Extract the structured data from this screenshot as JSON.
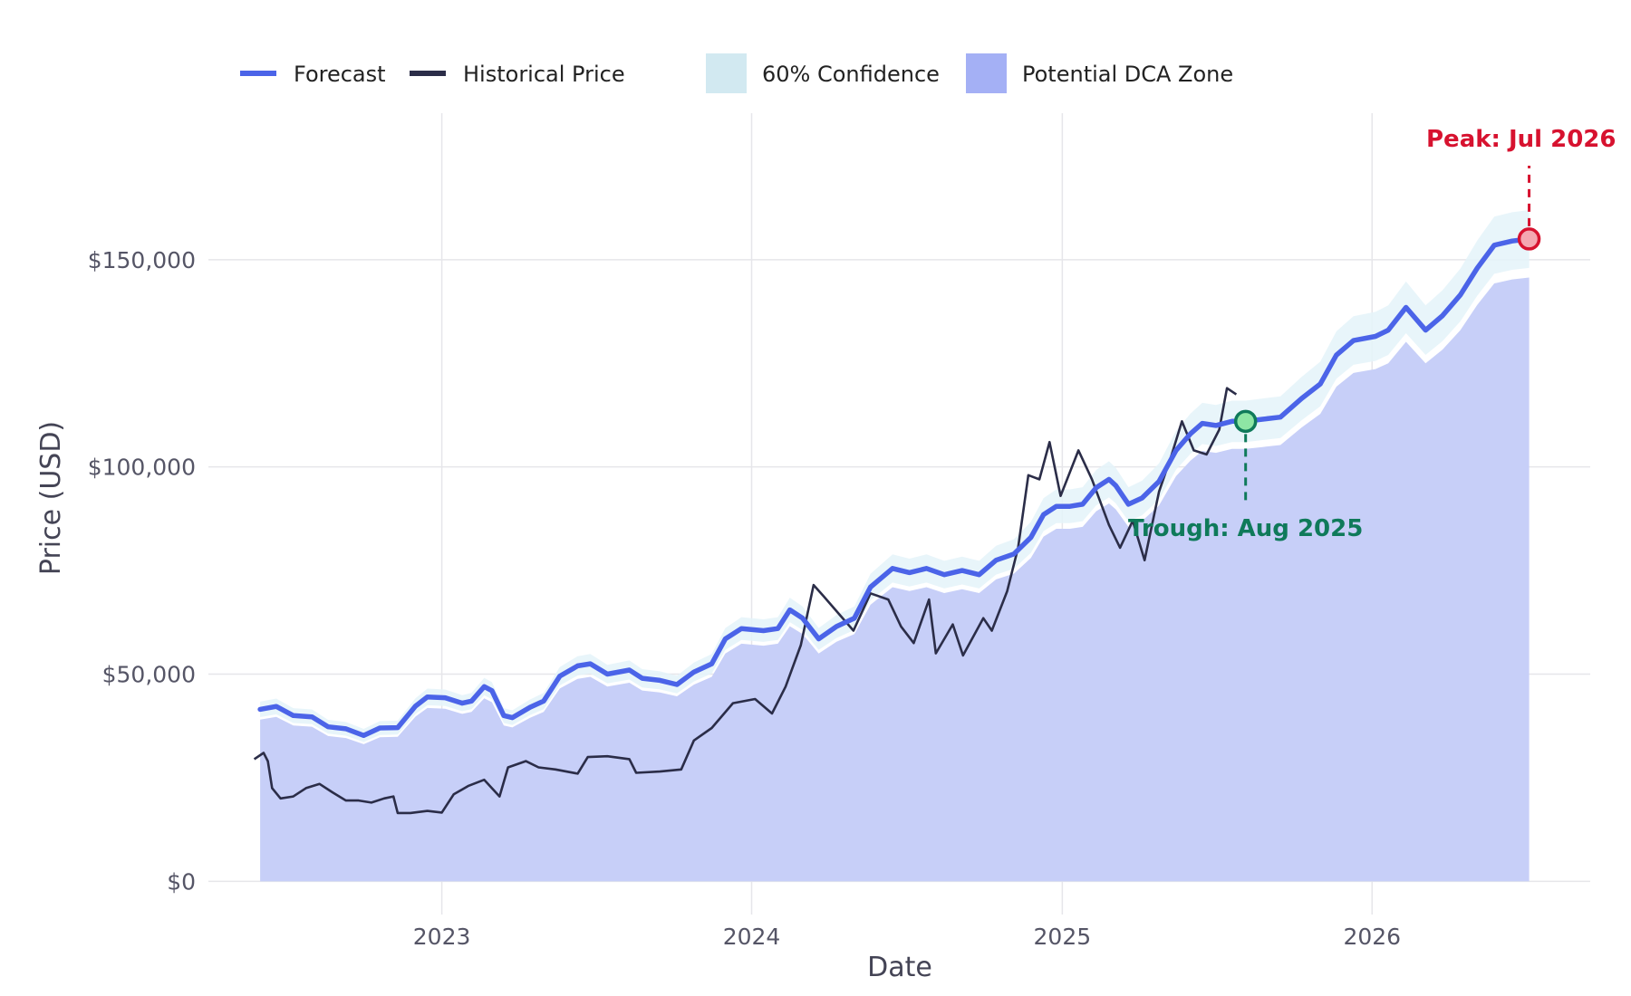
{
  "chart_data": {
    "type": "line",
    "title": "",
    "xlabel": "Date",
    "ylabel": "Price (USD)",
    "xlim": [
      "2022-04-01",
      "2026-09-15"
    ],
    "ylim": [
      -8000,
      193000
    ],
    "x_ticks": [
      {
        "date": "2023-01-01",
        "label": "2023"
      },
      {
        "date": "2024-01-01",
        "label": "2024"
      },
      {
        "date": "2025-01-01",
        "label": "2025"
      },
      {
        "date": "2026-01-01",
        "label": "2026"
      }
    ],
    "y_ticks": [
      {
        "value": 0,
        "label": "$0"
      },
      {
        "value": 50000,
        "label": "$50,000"
      },
      {
        "value": 100000,
        "label": "$100,000"
      },
      {
        "value": 150000,
        "label": "$150,000"
      }
    ],
    "grid": true,
    "legend": {
      "placement": "top",
      "items": [
        {
          "label": "Forecast",
          "kind": "line",
          "color": "#4b64e8"
        },
        {
          "label": "Historical Price",
          "kind": "line",
          "color": "#2b2d48"
        },
        {
          "label": "60% Confidence",
          "kind": "band",
          "color": "#d2e9f1"
        },
        {
          "label": "Potential DCA Zone",
          "kind": "area",
          "color": "#a4b0f5"
        }
      ]
    },
    "colors": {
      "forecast": "#4b64e8",
      "historical": "#2b2d48",
      "confidence": "#e4f3f9",
      "dca_zone": "#c7cff8",
      "peak": "#d7122f",
      "trough": "#0f7a5a",
      "grid": "#e6e6ea"
    },
    "confidence_band_pct": 0.045,
    "dca_zone_below_forecast_pct": 0.06,
    "series": [
      {
        "name": "Forecast",
        "points": [
          [
            "2022-06-01",
            41500
          ],
          [
            "2022-06-20",
            42200
          ],
          [
            "2022-07-10",
            40000
          ],
          [
            "2022-08-01",
            39700
          ],
          [
            "2022-08-20",
            37300
          ],
          [
            "2022-09-10",
            36800
          ],
          [
            "2022-10-01",
            35200
          ],
          [
            "2022-10-20",
            37000
          ],
          [
            "2022-11-10",
            37100
          ],
          [
            "2022-12-01",
            42300
          ],
          [
            "2022-12-15",
            44500
          ],
          [
            "2023-01-05",
            44300
          ],
          [
            "2023-01-25",
            43000
          ],
          [
            "2023-02-05",
            43500
          ],
          [
            "2023-02-20",
            47000
          ],
          [
            "2023-03-01",
            46000
          ],
          [
            "2023-03-15",
            40000
          ],
          [
            "2023-03-25",
            39500
          ],
          [
            "2023-04-15",
            42000
          ],
          [
            "2023-05-01",
            43500
          ],
          [
            "2023-05-20",
            49500
          ],
          [
            "2023-06-10",
            52000
          ],
          [
            "2023-06-25",
            52500
          ],
          [
            "2023-07-15",
            50000
          ],
          [
            "2023-08-10",
            51000
          ],
          [
            "2023-08-25",
            49000
          ],
          [
            "2023-09-15",
            48500
          ],
          [
            "2023-10-05",
            47500
          ],
          [
            "2023-10-25",
            50500
          ],
          [
            "2023-11-15",
            52500
          ],
          [
            "2023-12-01",
            58500
          ],
          [
            "2023-12-20",
            61000
          ],
          [
            "2024-01-15",
            60500
          ],
          [
            "2024-02-01",
            61000
          ],
          [
            "2024-02-15",
            65500
          ],
          [
            "2024-03-01",
            63500
          ],
          [
            "2024-03-20",
            58500
          ],
          [
            "2024-04-10",
            61500
          ],
          [
            "2024-05-01",
            63500
          ],
          [
            "2024-05-20",
            71000
          ],
          [
            "2024-06-15",
            75500
          ],
          [
            "2024-07-05",
            74500
          ],
          [
            "2024-07-25",
            75500
          ],
          [
            "2024-08-15",
            74000
          ],
          [
            "2024-09-05",
            75000
          ],
          [
            "2024-09-25",
            74000
          ],
          [
            "2024-10-15",
            77500
          ],
          [
            "2024-11-05",
            79000
          ],
          [
            "2024-11-25",
            83000
          ],
          [
            "2024-12-10",
            88500
          ],
          [
            "2024-12-25",
            90500
          ],
          [
            "2025-01-10",
            90500
          ],
          [
            "2025-01-25",
            91000
          ],
          [
            "2025-02-10",
            95000
          ],
          [
            "2025-02-25",
            97000
          ],
          [
            "2025-03-05",
            95500
          ],
          [
            "2025-03-20",
            91000
          ],
          [
            "2025-04-05",
            92500
          ],
          [
            "2025-04-25",
            96500
          ],
          [
            "2025-05-15",
            104000
          ],
          [
            "2025-06-01",
            108000
          ],
          [
            "2025-06-15",
            110500
          ],
          [
            "2025-07-01",
            110000
          ],
          [
            "2025-07-20",
            111000
          ],
          [
            "2025-08-05",
            111000
          ],
          [
            "2025-08-25",
            111500
          ],
          [
            "2025-09-15",
            112000
          ],
          [
            "2025-10-10",
            116500
          ],
          [
            "2025-11-01",
            120000
          ],
          [
            "2025-11-20",
            127000
          ],
          [
            "2025-12-10",
            130500
          ],
          [
            "2026-01-05",
            131500
          ],
          [
            "2026-01-20",
            133000
          ],
          [
            "2026-02-10",
            138500
          ],
          [
            "2026-03-05",
            133000
          ],
          [
            "2026-03-25",
            136500
          ],
          [
            "2026-04-15",
            141500
          ],
          [
            "2026-05-05",
            148000
          ],
          [
            "2026-05-25",
            153500
          ],
          [
            "2026-06-15",
            154500
          ],
          [
            "2026-07-05",
            155000
          ]
        ]
      },
      {
        "name": "Historical Price",
        "points": [
          [
            "2022-05-25",
            29500
          ],
          [
            "2022-06-05",
            31000
          ],
          [
            "2022-06-10",
            29000
          ],
          [
            "2022-06-15",
            22500
          ],
          [
            "2022-06-25",
            20000
          ],
          [
            "2022-07-10",
            20500
          ],
          [
            "2022-07-25",
            22500
          ],
          [
            "2022-08-10",
            23500
          ],
          [
            "2022-08-25",
            21500
          ],
          [
            "2022-09-10",
            19500
          ],
          [
            "2022-09-25",
            19500
          ],
          [
            "2022-10-10",
            19000
          ],
          [
            "2022-10-25",
            20000
          ],
          [
            "2022-11-05",
            20500
          ],
          [
            "2022-11-10",
            16500
          ],
          [
            "2022-11-25",
            16500
          ],
          [
            "2022-12-15",
            17000
          ],
          [
            "2023-01-01",
            16600
          ],
          [
            "2023-01-15",
            21000
          ],
          [
            "2023-02-01",
            23000
          ],
          [
            "2023-02-20",
            24500
          ],
          [
            "2023-03-10",
            20500
          ],
          [
            "2023-03-20",
            27500
          ],
          [
            "2023-04-10",
            29000
          ],
          [
            "2023-04-25",
            27500
          ],
          [
            "2023-05-15",
            27000
          ],
          [
            "2023-06-10",
            26000
          ],
          [
            "2023-06-22",
            30000
          ],
          [
            "2023-07-15",
            30200
          ],
          [
            "2023-08-10",
            29500
          ],
          [
            "2023-08-18",
            26200
          ],
          [
            "2023-09-15",
            26500
          ],
          [
            "2023-10-10",
            27000
          ],
          [
            "2023-10-25",
            34000
          ],
          [
            "2023-11-15",
            37000
          ],
          [
            "2023-12-10",
            43000
          ],
          [
            "2024-01-05",
            44000
          ],
          [
            "2024-01-25",
            40500
          ],
          [
            "2024-02-10",
            47000
          ],
          [
            "2024-02-28",
            57000
          ],
          [
            "2024-03-14",
            71500
          ],
          [
            "2024-03-25",
            69000
          ],
          [
            "2024-04-15",
            64000
          ],
          [
            "2024-04-30",
            60500
          ],
          [
            "2024-05-20",
            69500
          ],
          [
            "2024-06-10",
            68000
          ],
          [
            "2024-06-25",
            61500
          ],
          [
            "2024-07-10",
            57500
          ],
          [
            "2024-07-28",
            68000
          ],
          [
            "2024-08-05",
            55000
          ],
          [
            "2024-08-25",
            62000
          ],
          [
            "2024-09-06",
            54500
          ],
          [
            "2024-09-30",
            63500
          ],
          [
            "2024-10-10",
            60500
          ],
          [
            "2024-10-28",
            70000
          ],
          [
            "2024-11-10",
            80500
          ],
          [
            "2024-11-22",
            98000
          ],
          [
            "2024-12-05",
            97000
          ],
          [
            "2024-12-17",
            106000
          ],
          [
            "2024-12-30",
            93000
          ],
          [
            "2025-01-20",
            104000
          ],
          [
            "2025-02-05",
            97000
          ],
          [
            "2025-02-25",
            86000
          ],
          [
            "2025-03-10",
            80500
          ],
          [
            "2025-03-25",
            87000
          ],
          [
            "2025-04-08",
            77500
          ],
          [
            "2025-04-25",
            94000
          ],
          [
            "2025-05-10",
            103000
          ],
          [
            "2025-05-22",
            111000
          ],
          [
            "2025-06-05",
            104000
          ],
          [
            "2025-06-20",
            103000
          ],
          [
            "2025-07-05",
            109000
          ],
          [
            "2025-07-14",
            119000
          ],
          [
            "2025-07-25",
            117500
          ]
        ]
      }
    ],
    "annotations": [
      {
        "label": "Peak: Jul 2026",
        "date": "2026-07-05",
        "value": 155000,
        "kind": "peak"
      },
      {
        "label": "Trough: Aug 2025",
        "date": "2025-08-05",
        "value": 111000,
        "kind": "trough"
      }
    ]
  }
}
